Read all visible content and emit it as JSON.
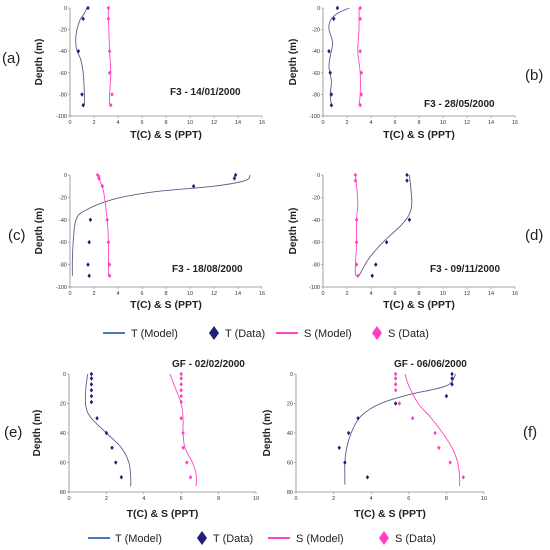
{
  "colors": {
    "t_model": "#5a5a8a",
    "t_data": "#1f1f7a",
    "s_model": "#ff44c8",
    "s_data": "#ff3ec4",
    "legend_t_line": "#4a78c0",
    "axis": "#888888"
  },
  "legends": [
    {
      "t_model": "T (Model)",
      "t_data": "T (Data)",
      "s_model": "S (Model)",
      "s_data": "S (Data)"
    },
    {
      "t_model": "T (Model)",
      "t_data": "T (Data)",
      "s_model": "S (Model)",
      "s_data": "S (Data)"
    }
  ],
  "chart_data": [
    {
      "panel": "(a)",
      "title": "F3 - 14/01/2000",
      "type": "line",
      "xlabel": "T(C) & S (PPT)",
      "ylabel": "Depth (m)",
      "xlim": [
        0,
        16
      ],
      "ylim": [
        -100,
        0
      ],
      "xticks": [
        0,
        2,
        4,
        6,
        8,
        10,
        12,
        14,
        16
      ],
      "yticks": [
        0,
        -20,
        -40,
        -60,
        -80,
        -100
      ],
      "series": [
        {
          "name": "T (Model)",
          "kind": "line",
          "points": [
            [
              1.4,
              0
            ],
            [
              1.2,
              -5
            ],
            [
              0.8,
              -12
            ],
            [
              0.5,
              -25
            ],
            [
              0.5,
              -35
            ],
            [
              0.6,
              -40
            ],
            [
              0.9,
              -48
            ],
            [
              1.1,
              -60
            ],
            [
              1.2,
              -80
            ],
            [
              1.2,
              -90
            ]
          ]
        },
        {
          "name": "T (Data)",
          "kind": "markers",
          "points": [
            [
              1.5,
              0
            ],
            [
              1.1,
              -10
            ],
            [
              0.7,
              -40
            ],
            [
              1.0,
              -80
            ],
            [
              1.1,
              -90
            ]
          ]
        },
        {
          "name": "S (Model)",
          "kind": "line",
          "points": [
            [
              3.2,
              0
            ],
            [
              3.2,
              -10
            ],
            [
              3.3,
              -40
            ],
            [
              3.4,
              -60
            ],
            [
              3.3,
              -80
            ],
            [
              3.3,
              -90
            ]
          ]
        },
        {
          "name": "S (Data)",
          "kind": "markers",
          "points": [
            [
              3.2,
              0
            ],
            [
              3.2,
              -10
            ],
            [
              3.3,
              -40
            ],
            [
              3.3,
              -60
            ],
            [
              3.5,
              -80
            ],
            [
              3.4,
              -90
            ]
          ]
        }
      ]
    },
    {
      "panel": "(b)",
      "title": "F3 - 28/05/2000",
      "type": "line",
      "xlabel": "T(C) & S (PPT)",
      "ylabel": "Depth (m)",
      "xlim": [
        0,
        16
      ],
      "ylim": [
        -100,
        0
      ],
      "xticks": [
        0,
        2,
        4,
        6,
        8,
        10,
        12,
        14,
        16
      ],
      "yticks": [
        0,
        -20,
        -40,
        -60,
        -80,
        -100
      ],
      "series": [
        {
          "name": "T (Model)",
          "kind": "line",
          "points": [
            [
              2.2,
              0
            ],
            [
              1.2,
              -5
            ],
            [
              0.6,
              -12
            ],
            [
              0.5,
              -20
            ],
            [
              0.8,
              -32
            ],
            [
              0.6,
              -45
            ],
            [
              0.5,
              -55
            ],
            [
              0.7,
              -68
            ],
            [
              0.6,
              -80
            ],
            [
              0.7,
              -90
            ]
          ]
        },
        {
          "name": "T (Data)",
          "kind": "markers",
          "points": [
            [
              1.2,
              0
            ],
            [
              0.9,
              -10
            ],
            [
              0.5,
              -40
            ],
            [
              0.6,
              -60
            ],
            [
              0.7,
              -80
            ],
            [
              0.7,
              -90
            ]
          ]
        },
        {
          "name": "S (Model)",
          "kind": "line",
          "points": [
            [
              3.0,
              0
            ],
            [
              3.0,
              -20
            ],
            [
              2.9,
              -40
            ],
            [
              3.1,
              -60
            ],
            [
              3.1,
              -80
            ],
            [
              3.0,
              -90
            ]
          ]
        },
        {
          "name": "S (Data)",
          "kind": "markers",
          "points": [
            [
              3.1,
              0
            ],
            [
              3.1,
              -10
            ],
            [
              3.1,
              -40
            ],
            [
              3.2,
              -60
            ],
            [
              3.2,
              -80
            ],
            [
              3.1,
              -90
            ]
          ]
        }
      ]
    },
    {
      "panel": "(c)",
      "title": "F3 - 18/08/2000",
      "type": "line",
      "xlabel": "T(C) & S (PPT)",
      "ylabel": "Depth (m)",
      "xlim": [
        0,
        16
      ],
      "ylim": [
        -100,
        0
      ],
      "xticks": [
        0,
        2,
        4,
        6,
        8,
        10,
        12,
        14,
        16
      ],
      "yticks": [
        0,
        -20,
        -40,
        -60,
        -80,
        -100
      ],
      "series": [
        {
          "name": "T (Model)",
          "kind": "line",
          "points": [
            [
              15.0,
              0
            ],
            [
              14.6,
              -5
            ],
            [
              12.0,
              -10
            ],
            [
              7.0,
              -15
            ],
            [
              3.5,
              -22
            ],
            [
              1.2,
              -32
            ],
            [
              0.5,
              -40
            ],
            [
              0.3,
              -55
            ],
            [
              0.2,
              -75
            ],
            [
              0.2,
              -90
            ]
          ]
        },
        {
          "name": "T (Data)",
          "kind": "markers",
          "points": [
            [
              13.8,
              0
            ],
            [
              13.7,
              -3
            ],
            [
              10.3,
              -10
            ],
            [
              1.7,
              -40
            ],
            [
              1.6,
              -60
            ],
            [
              1.5,
              -80
            ],
            [
              1.6,
              -90
            ]
          ]
        },
        {
          "name": "S (Model)",
          "kind": "line",
          "points": [
            [
              2.5,
              0
            ],
            [
              2.5,
              -5
            ],
            [
              2.8,
              -15
            ],
            [
              3.1,
              -40
            ],
            [
              3.2,
              -60
            ],
            [
              3.2,
              -80
            ],
            [
              3.2,
              -90
            ]
          ]
        },
        {
          "name": "S (Data)",
          "kind": "markers",
          "points": [
            [
              2.3,
              0
            ],
            [
              2.4,
              -3
            ],
            [
              2.7,
              -10
            ],
            [
              3.1,
              -40
            ],
            [
              3.2,
              -60
            ],
            [
              3.3,
              -80
            ],
            [
              3.3,
              -90
            ]
          ]
        }
      ]
    },
    {
      "panel": "(d)",
      "title": "F3 - 09/11/2000",
      "type": "line",
      "xlabel": "T(C) & S (PPT)",
      "ylabel": "Depth (m)",
      "xlim": [
        0,
        16
      ],
      "ylim": [
        -100,
        0
      ],
      "xticks": [
        0,
        2,
        4,
        6,
        8,
        10,
        12,
        14,
        16
      ],
      "yticks": [
        0,
        -20,
        -40,
        -60,
        -80,
        -100
      ],
      "series": [
        {
          "name": "T (Model)",
          "kind": "line",
          "points": [
            [
              7.2,
              0
            ],
            [
              7.3,
              -10
            ],
            [
              7.4,
              -25
            ],
            [
              7.2,
              -35
            ],
            [
              6.5,
              -45
            ],
            [
              5.0,
              -60
            ],
            [
              3.8,
              -75
            ],
            [
              3.0,
              -90
            ]
          ]
        },
        {
          "name": "T (Data)",
          "kind": "markers",
          "points": [
            [
              7.0,
              0
            ],
            [
              7.0,
              -5
            ],
            [
              7.2,
              -40
            ],
            [
              5.3,
              -60
            ],
            [
              4.4,
              -80
            ],
            [
              4.1,
              -90
            ]
          ]
        },
        {
          "name": "S (Model)",
          "kind": "line",
          "points": [
            [
              2.7,
              0
            ],
            [
              2.8,
              -10
            ],
            [
              2.9,
              -25
            ],
            [
              2.8,
              -40
            ],
            [
              2.8,
              -60
            ],
            [
              2.7,
              -80
            ],
            [
              2.7,
              -90
            ]
          ]
        },
        {
          "name": "S (Data)",
          "kind": "markers",
          "points": [
            [
              2.7,
              0
            ],
            [
              2.7,
              -5
            ],
            [
              2.8,
              -40
            ],
            [
              2.8,
              -60
            ],
            [
              2.8,
              -80
            ],
            [
              2.9,
              -90
            ]
          ]
        }
      ]
    },
    {
      "panel": "(e)",
      "title": "GF - 02/02/2000",
      "type": "line",
      "xlabel": "T(C) & S (PPT)",
      "ylabel": "Depth (m)",
      "xlim": [
        0,
        10
      ],
      "ylim": [
        80,
        0
      ],
      "xticks": [
        0,
        2,
        4,
        6,
        8,
        10
      ],
      "yticks": [
        0,
        20,
        40,
        60,
        80
      ],
      "series": [
        {
          "name": "T (Model)",
          "kind": "line",
          "points": [
            [
              1.0,
              0
            ],
            [
              0.9,
              10
            ],
            [
              0.9,
              22
            ],
            [
              1.2,
              30
            ],
            [
              2.0,
              40
            ],
            [
              2.8,
              50
            ],
            [
              3.2,
              60
            ],
            [
              3.3,
              70
            ],
            [
              3.3,
              76
            ]
          ]
        },
        {
          "name": "T (Data)",
          "kind": "markers",
          "points": [
            [
              1.2,
              0
            ],
            [
              1.2,
              3
            ],
            [
              1.2,
              7
            ],
            [
              1.2,
              11
            ],
            [
              1.2,
              15
            ],
            [
              1.2,
              19
            ],
            [
              1.5,
              30
            ],
            [
              2.0,
              40
            ],
            [
              2.3,
              50
            ],
            [
              2.5,
              60
            ],
            [
              2.8,
              70
            ]
          ]
        },
        {
          "name": "S (Model)",
          "kind": "line",
          "points": [
            [
              5.4,
              0
            ],
            [
              5.7,
              10
            ],
            [
              6.0,
              20
            ],
            [
              6.1,
              30
            ],
            [
              6.1,
              40
            ],
            [
              6.2,
              50
            ],
            [
              6.6,
              60
            ],
            [
              6.8,
              68
            ],
            [
              6.8,
              76
            ]
          ]
        },
        {
          "name": "S (Data)",
          "kind": "markers",
          "points": [
            [
              6.0,
              0
            ],
            [
              6.0,
              3
            ],
            [
              6.0,
              7
            ],
            [
              6.0,
              11
            ],
            [
              6.0,
              15
            ],
            [
              6.0,
              19
            ],
            [
              6.0,
              30
            ],
            [
              6.1,
              40
            ],
            [
              6.1,
              50
            ],
            [
              6.3,
              60
            ],
            [
              6.5,
              70
            ]
          ]
        }
      ]
    },
    {
      "panel": "(f)",
      "title": "GF - 06/06/2000",
      "type": "line",
      "xlabel": "T(C) & S (PPT)",
      "ylabel": "Depth (m)",
      "xlim": [
        0,
        10
      ],
      "ylim": [
        80,
        0
      ],
      "xticks": [
        0,
        2,
        4,
        6,
        8,
        10
      ],
      "yticks": [
        0,
        20,
        40,
        60,
        80
      ],
      "series": [
        {
          "name": "T (Model)",
          "kind": "line",
          "points": [
            [
              8.5,
              0
            ],
            [
              8.0,
              8
            ],
            [
              6.0,
              14
            ],
            [
              4.5,
              20
            ],
            [
              3.5,
              28
            ],
            [
              3.0,
              38
            ],
            [
              2.7,
              50
            ],
            [
              2.6,
              60
            ],
            [
              2.6,
              70
            ],
            [
              2.6,
              75
            ]
          ]
        },
        {
          "name": "T (Data)",
          "kind": "markers",
          "points": [
            [
              8.3,
              0
            ],
            [
              8.3,
              3
            ],
            [
              8.3,
              7
            ],
            [
              8.0,
              15
            ],
            [
              5.3,
              20
            ],
            [
              3.3,
              30
            ],
            [
              2.8,
              40
            ],
            [
              2.3,
              50
            ],
            [
              2.6,
              60
            ],
            [
              3.8,
              70
            ]
          ]
        },
        {
          "name": "S (Model)",
          "kind": "line",
          "points": [
            [
              5.8,
              0
            ],
            [
              6.0,
              8
            ],
            [
              6.5,
              20
            ],
            [
              7.2,
              30
            ],
            [
              7.8,
              40
            ],
            [
              8.3,
              50
            ],
            [
              8.6,
              60
            ],
            [
              8.7,
              70
            ],
            [
              8.7,
              76
            ]
          ]
        },
        {
          "name": "S (Data)",
          "kind": "markers",
          "points": [
            [
              5.3,
              0
            ],
            [
              5.3,
              3
            ],
            [
              5.3,
              7
            ],
            [
              5.3,
              11
            ],
            [
              5.5,
              20
            ],
            [
              6.2,
              30
            ],
            [
              7.4,
              40
            ],
            [
              7.6,
              50
            ],
            [
              8.2,
              60
            ],
            [
              8.9,
              70
            ]
          ]
        }
      ]
    }
  ]
}
